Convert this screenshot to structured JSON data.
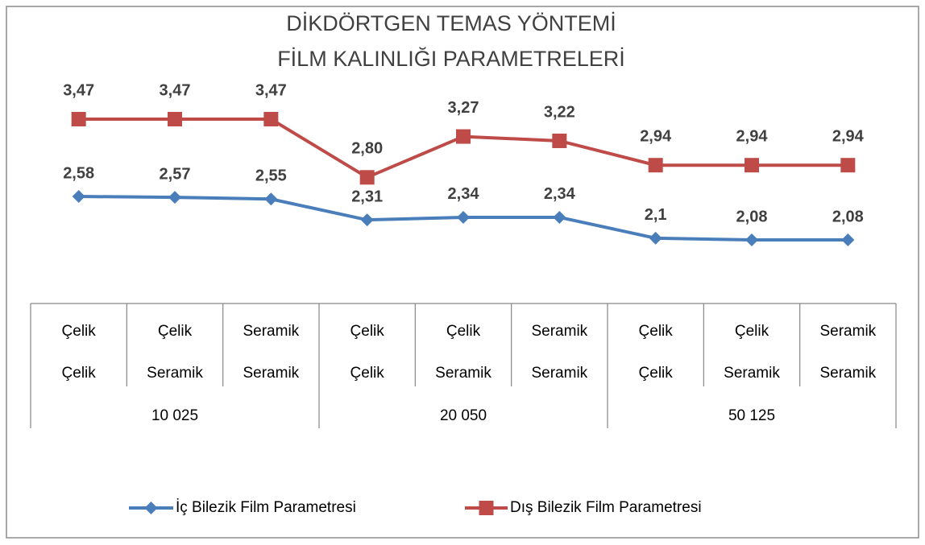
{
  "chart_data": {
    "type": "line",
    "title": [
      "DİKDÖRTGEN TEMAS YÖNTEMİ",
      "FİLM KALINLIĞI PARAMETRELERİ"
    ],
    "groups": [
      {
        "name": "10 025",
        "categories": [
          [
            "Çelik",
            "Çelik"
          ],
          [
            "Çelik",
            "Seramik"
          ],
          [
            "Seramik",
            "Seramik"
          ]
        ]
      },
      {
        "name": "20 050",
        "categories": [
          [
            "Çelik",
            "Çelik"
          ],
          [
            "Çelik",
            "Seramik"
          ],
          [
            "Seramik",
            "Seramik"
          ]
        ]
      },
      {
        "name": "50 125",
        "categories": [
          [
            "Çelik",
            "Çelik"
          ],
          [
            "Çelik",
            "Seramik"
          ],
          [
            "Seramik",
            "Seramik"
          ]
        ]
      }
    ],
    "series": [
      {
        "name": "İç Bilezik Film Parametresi",
        "color": "#4a7ebb",
        "marker": "diamond",
        "values": [
          2.58,
          2.57,
          2.55,
          2.31,
          2.34,
          2.34,
          2.1,
          2.08,
          2.08
        ],
        "value_labels": [
          "2,58",
          "2,57",
          "2,55",
          "2,31",
          "2,34",
          "2,34",
          "2,1",
          "2,08",
          "2,08"
        ]
      },
      {
        "name": "Dış Bilezik Film Parametresi",
        "color": "#be4b48",
        "marker": "square",
        "values": [
          3.47,
          3.47,
          3.47,
          2.8,
          3.27,
          3.22,
          2.94,
          2.94,
          2.94
        ],
        "value_labels": [
          "3,47",
          "3,47",
          "3,47",
          "2,80",
          "3,27",
          "3,22",
          "2,94",
          "2,94",
          "2,94"
        ]
      }
    ],
    "legend": "bottom"
  }
}
